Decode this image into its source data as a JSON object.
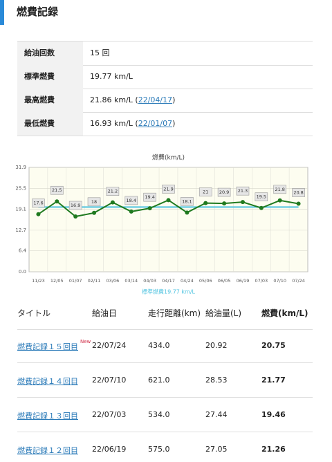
{
  "header": {
    "title": "燃費記録"
  },
  "stats": [
    {
      "label": "給油回数",
      "value": "15 回"
    },
    {
      "label": "標準燃費",
      "value": "19.77 km/L"
    },
    {
      "label": "最高燃費",
      "value": "21.86 km/L (",
      "link": "22/04/17",
      "close": ")"
    },
    {
      "label": "最低燃費",
      "value": "16.93 km/L (",
      "link": "22/01/07",
      "close": ")"
    }
  ],
  "chart_data": {
    "type": "line",
    "title": "燃費(km/L)",
    "categories": [
      "11/23",
      "12/05",
      "01/07",
      "02/11",
      "03/06",
      "03/14",
      "04/03",
      "04/17",
      "04/24",
      "05/06",
      "06/05",
      "06/19",
      "07/03",
      "07/10",
      "07/24"
    ],
    "values": [
      17.6,
      21.5,
      16.9,
      18.0,
      21.2,
      18.4,
      19.4,
      21.9,
      18.1,
      21.0,
      20.9,
      21.3,
      19.5,
      21.8,
      20.8
    ],
    "color": "#1f7a1f",
    "ylim": [
      0,
      31.9
    ],
    "yticks": [
      {
        "value": 0,
        "label": "0.0"
      },
      6.4,
      12.7,
      19.1,
      25.5,
      31.9
    ],
    "grid": true,
    "average_line": {
      "value": 19.77,
      "label": "標準燃費19.77 km/L",
      "color": "#4fc3e0"
    }
  },
  "records": {
    "headers": [
      "タイトル",
      "給油日",
      "走行距離(km)",
      "給油量(L)",
      "燃費(km/L)"
    ],
    "rows": [
      {
        "title": "燃費記録１５回目",
        "badge": "New",
        "date": "22/07/24",
        "distance": "434.0",
        "fuel": "20.92",
        "economy": "20.75"
      },
      {
        "title": "燃費記録１４回目",
        "date": "22/07/10",
        "distance": "621.0",
        "fuel": "28.53",
        "economy": "21.77"
      },
      {
        "title": "燃費記録１３回目",
        "date": "22/07/03",
        "distance": "534.0",
        "fuel": "27.44",
        "economy": "19.46"
      },
      {
        "title": "燃費記録１２回目",
        "date": "22/06/19",
        "distance": "575.0",
        "fuel": "27.05",
        "economy": "21.26"
      }
    ]
  }
}
